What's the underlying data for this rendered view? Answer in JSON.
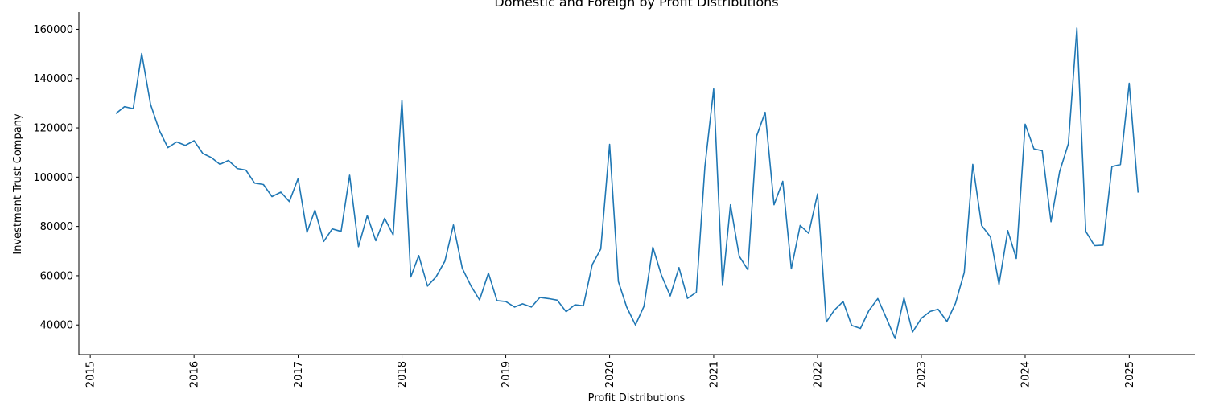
{
  "chart_data": {
    "type": "line",
    "title": "Domestic and Foreign by Profit Distributions",
    "xlabel": "Profit Distributions",
    "ylabel": "Investment Trust Company",
    "xlim": [
      "2014-11-22",
      "2025-08-20"
    ],
    "ylim": [
      28000,
      167000
    ],
    "x_ticks": [
      "2015",
      "2016",
      "2017",
      "2018",
      "2019",
      "2020",
      "2021",
      "2022",
      "2023",
      "2024",
      "2025"
    ],
    "y_ticks": [
      40000,
      60000,
      80000,
      100000,
      120000,
      140000,
      160000
    ],
    "y_tick_labels": [
      "40000",
      "60000",
      "80000",
      "100000",
      "120000",
      "140000",
      "160000"
    ],
    "grid": false,
    "legend": "none",
    "color": "#1f77b4",
    "series": [
      {
        "x": [
          "2015-04",
          "2015-05",
          "2015-06",
          "2015-07",
          "2015-08",
          "2015-09",
          "2015-10",
          "2015-11",
          "2015-12",
          "2016-01",
          "2016-02",
          "2016-03",
          "2016-04",
          "2016-05",
          "2016-06",
          "2016-07",
          "2016-08",
          "2016-09",
          "2016-10",
          "2016-11",
          "2016-12",
          "2017-01",
          "2017-02",
          "2017-03",
          "2017-04",
          "2017-05",
          "2017-06",
          "2017-07",
          "2017-08",
          "2017-09",
          "2017-10",
          "2017-11",
          "2017-12",
          "2018-01",
          "2018-02",
          "2018-03",
          "2018-04",
          "2018-05",
          "2018-06",
          "2018-07",
          "2018-08",
          "2018-09",
          "2018-10",
          "2018-11",
          "2018-12",
          "2019-01",
          "2019-02",
          "2019-03",
          "2019-04",
          "2019-05",
          "2019-06",
          "2019-07",
          "2019-08",
          "2019-09",
          "2019-10",
          "2019-11",
          "2019-12",
          "2020-01",
          "2020-02",
          "2020-03",
          "2020-04",
          "2020-05",
          "2020-06",
          "2020-07",
          "2020-08",
          "2020-09",
          "2020-10",
          "2020-11",
          "2020-12",
          "2021-01",
          "2021-02",
          "2021-03",
          "2021-04",
          "2021-05",
          "2021-06",
          "2021-07",
          "2021-08",
          "2021-09",
          "2021-10",
          "2021-11",
          "2021-12",
          "2022-01",
          "2022-02",
          "2022-03",
          "2022-04",
          "2022-05",
          "2022-06",
          "2022-07",
          "2022-08",
          "2022-09",
          "2022-10",
          "2022-11",
          "2022-12",
          "2023-01",
          "2023-02",
          "2023-03",
          "2023-04",
          "2023-05",
          "2023-06",
          "2023-07",
          "2023-08",
          "2023-09",
          "2023-10",
          "2023-11",
          "2023-12",
          "2024-01",
          "2024-02",
          "2024-03",
          "2024-04",
          "2024-05",
          "2024-06",
          "2024-07",
          "2024-08",
          "2024-09",
          "2024-10",
          "2024-11",
          "2024-12",
          "2025-01",
          "2025-02"
        ],
        "y": [
          125800,
          128600,
          127800,
          150200,
          129500,
          119000,
          112000,
          114300,
          112900,
          114800,
          109600,
          108000,
          105200,
          106800,
          103500,
          102900,
          97600,
          97000,
          92100,
          93900,
          90100,
          99500,
          77600,
          86600,
          73900,
          79000,
          78000,
          100800,
          71800,
          84400,
          74200,
          83300,
          76600,
          131200,
          59500,
          68200,
          55800,
          59600,
          65900,
          80600,
          63000,
          55800,
          50200,
          61100,
          49900,
          49500,
          47300,
          48600,
          47300,
          51200,
          50700,
          50100,
          45400,
          48200,
          47800,
          64500,
          70800,
          113300,
          57600,
          47300,
          40000,
          47600,
          71600,
          60300,
          51800,
          63300,
          50800,
          53300,
          104200,
          135800,
          56100,
          88800,
          67900,
          62400,
          116700,
          126300,
          88800,
          98300,
          62800,
          80400,
          77200,
          93200,
          41200,
          46000,
          49500,
          39800,
          38600,
          45900,
          50700,
          42600,
          34500,
          51000,
          37100,
          42700,
          45500,
          46400,
          41400,
          48800,
          61300,
          105200,
          80400,
          75700,
          56500,
          78300,
          67000,
          121500,
          111500,
          110700,
          81900,
          102200,
          113600,
          160500,
          78000,
          72200,
          72400,
          104300,
          105100,
          138100,
          93700
        ]
      }
    ]
  }
}
